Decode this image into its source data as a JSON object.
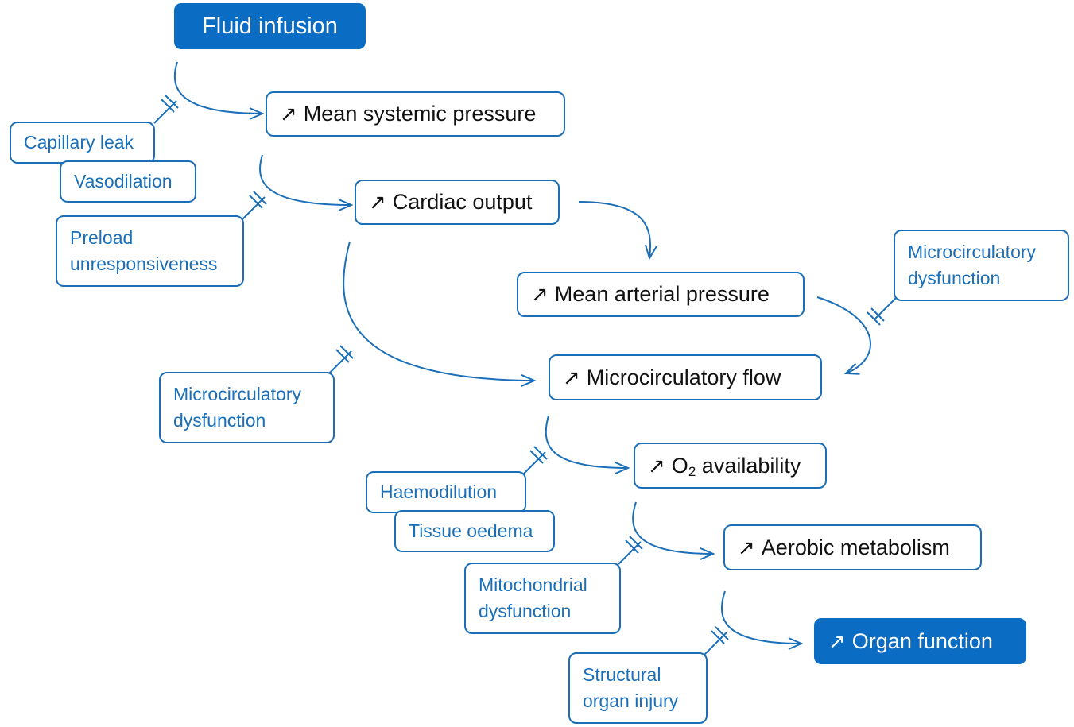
{
  "colors": {
    "accent": "#1a6fb8",
    "fill": "#0a6cc2",
    "text": "#111111"
  },
  "icons": {
    "increase": "north-east-arrow"
  },
  "nodes": {
    "fluid_infusion": "Fluid infusion",
    "mean_systemic_pressure": "Mean systemic pressure",
    "cardiac_output": "Cardiac output",
    "mean_arterial_pressure": "Mean arterial pressure",
    "microcirculatory_flow": "Microcirculatory flow",
    "o2_prefix": "O",
    "o2_sub": "2",
    "o2_suffix": "availability",
    "aerobic_metabolism": "Aerobic metabolism",
    "organ_function": "Organ function"
  },
  "inhibitors": {
    "capillary_leak": "Capillary leak",
    "vasodilation": "Vasodilation",
    "preload_line1": "Preload",
    "preload_line2": "unresponsiveness",
    "micro_right_line1": "Microcirculatory",
    "micro_right_line2": "dysfunction",
    "micro_left_line1": "Microcirculatory",
    "micro_left_line2": "dysfunction",
    "haemodilution": "Haemodilution",
    "tissue_oedema": "Tissue oedema",
    "mito_line1": "Mitochondrial",
    "mito_line2": "dysfunction",
    "structural_line1": "Structural",
    "structural_line2": "organ injury"
  },
  "arrow_symbol": "↗"
}
